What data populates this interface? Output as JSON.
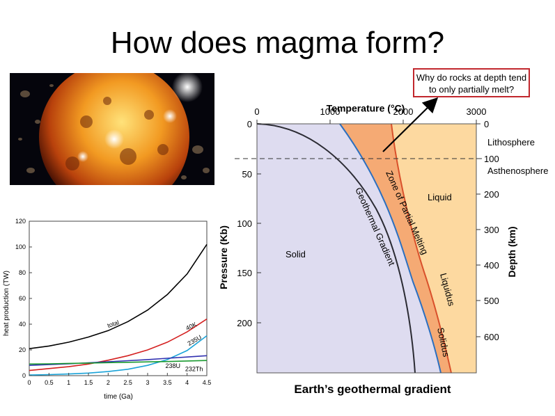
{
  "slide": {
    "title": "How does magma form?",
    "callout": "Why do rocks at depth tend to only partially melt?",
    "caption": "Earth’s geothermal gradient"
  },
  "geotherm_diagram": {
    "top_axis_title": "Temperature (°C)",
    "top_ticks": [
      "0",
      "1000",
      "2000",
      "3000"
    ],
    "left_axis_title": "Pressure (Kb)",
    "left_ticks": [
      "0",
      "50",
      "100",
      "150",
      "200"
    ],
    "right_axis_title": "Depth (km)",
    "right_ticks": [
      "0",
      "100",
      "200",
      "300",
      "400",
      "500",
      "600"
    ],
    "layer_labels": {
      "lithosphere": "Lithosphere",
      "asthenosphere": "Asthenosphere"
    },
    "region_labels": {
      "solid": "Solid",
      "liquid": "Liquid",
      "geothermal_gradient": "Geothermal Gradient",
      "zone_partial_melting": "Zone of Partial Melting",
      "liquidus": "Liquidus",
      "solidus": "Solidus"
    },
    "colors": {
      "solid": "#dedcf0",
      "partial": "#f5aa74",
      "liquid": "#fdd9a0",
      "solidus_line": "#2c6fbf",
      "liquidus_line": "#d9502b",
      "geotherm_line": "#2b2b33"
    }
  },
  "chart_data": {
    "type": "line",
    "xlabel": "time (Ga)",
    "ylabel": "heat production (TW)",
    "xlim": [
      0,
      4.5
    ],
    "ylim": [
      0,
      120
    ],
    "x_ticks": [
      "0",
      "0.5",
      "1",
      "1.5",
      "2",
      "2.5",
      "3",
      "3.5",
      "4",
      "4.5"
    ],
    "y_ticks": [
      "0",
      "20",
      "40",
      "60",
      "80",
      "100",
      "120"
    ],
    "series": [
      {
        "name": "total",
        "color": "#000000",
        "x": [
          0,
          0.5,
          1,
          1.5,
          2,
          2.5,
          3,
          3.5,
          4,
          4.5
        ],
        "y": [
          21,
          23,
          26,
          30,
          35,
          42,
          51,
          63,
          79,
          102
        ]
      },
      {
        "name": "40K",
        "color": "#d42020",
        "x": [
          0,
          0.5,
          1,
          1.5,
          2,
          2.5,
          3,
          3.5,
          4,
          4.5
        ],
        "y": [
          4,
          5.5,
          7,
          9,
          12,
          15.5,
          20,
          26,
          34,
          44
        ]
      },
      {
        "name": "235U",
        "color": "#1aa3d8",
        "x": [
          0,
          0.5,
          1,
          1.5,
          2,
          2.5,
          3,
          3.5,
          4,
          4.5
        ],
        "y": [
          0.5,
          0.8,
          1.3,
          2,
          3.2,
          5,
          8,
          12.5,
          19.5,
          31
        ]
      },
      {
        "name": "238U",
        "color": "#3030b0",
        "x": [
          0,
          0.5,
          1,
          1.5,
          2,
          2.5,
          3,
          3.5,
          4,
          4.5
        ],
        "y": [
          8,
          8.6,
          9.2,
          10,
          10.8,
          11.6,
          12.5,
          13.5,
          14.5,
          15.5
        ]
      },
      {
        "name": "232Th",
        "color": "#1a9a30",
        "x": [
          0,
          0.5,
          1,
          1.5,
          2,
          2.5,
          3,
          3.5,
          4,
          4.5
        ],
        "y": [
          9,
          9.2,
          9.5,
          9.8,
          10.1,
          10.4,
          10.7,
          11,
          11.4,
          11.8
        ]
      }
    ]
  }
}
